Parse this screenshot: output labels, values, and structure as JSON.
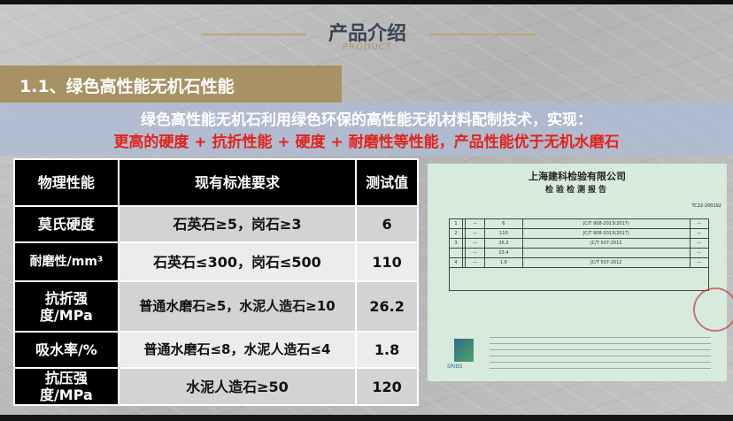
{
  "header": {
    "title": "产品介绍",
    "subtitle": "PRODUCT"
  },
  "section": {
    "title": "1.1、绿色高性能无机石性能"
  },
  "intro": {
    "line1": "绿色高性能无机石利用绿色环保的高性能无机材料配制技术，实现：",
    "line2": "更高的硬度 + 抗折性能 + 硬度 + 耐磨性等性能，产品性能优于无机水磨石",
    "line2_color": "#e2231a"
  },
  "table": {
    "headers": [
      "物理性能",
      "现有标准要求",
      "测试值"
    ],
    "rows": [
      {
        "property": "莫氏硬度",
        "standard": "石英石≥5，岗石≥3",
        "value": "6"
      },
      {
        "property": "耐磨性/mm³",
        "standard": "石英石≤300，岗石≤500",
        "value": "110"
      },
      {
        "property": "抗折强度/MPa",
        "standard": "普通水磨石≥5，水泥人造石≥10",
        "value": "26.2"
      },
      {
        "property": "吸水率/%",
        "standard": "普通水磨石≤8，水泥人造石≤4",
        "value": "1.8"
      },
      {
        "property": "抗压强度/MPa",
        "standard": "水泥人造石≥50",
        "value": "120"
      }
    ]
  },
  "certificate": {
    "company": "上海建科检验有限公司",
    "title": "检验检测报告",
    "report_no": "TC22-200192",
    "rows": [
      {
        "no": "1",
        "result": "6",
        "method": "JC/T 908-2013(2017)"
      },
      {
        "no": "2",
        "result": "110",
        "method": "JC/T 908-2013(2017)"
      },
      {
        "no": "3",
        "result": "26.2",
        "method": "JC/T 507-2012"
      },
      {
        "no": "",
        "result": "23.4",
        "method": ""
      },
      {
        "no": "4",
        "result": "1.8",
        "method": "JC/T 507-2012"
      }
    ],
    "logo": "SRIBS"
  }
}
